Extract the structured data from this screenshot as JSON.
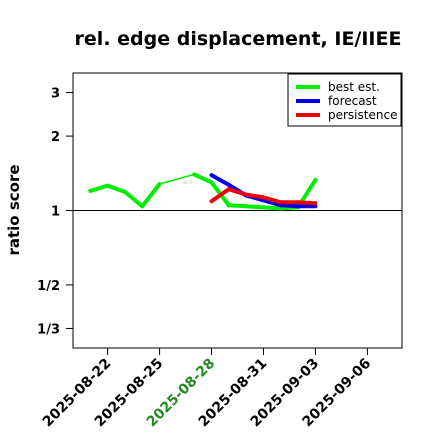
{
  "chart_data": {
    "type": "line",
    "title": "rel. edge displacement, IE/IIEE",
    "xlabel": "",
    "ylabel": "ratio score",
    "y_scale": "log",
    "ylim": [
      0.2778,
      3.6
    ],
    "y_ticks": [
      {
        "value": 0.3333,
        "label": "1/3"
      },
      {
        "value": 0.5,
        "label": "1/2"
      },
      {
        "value": 1,
        "label": "1"
      },
      {
        "value": 2,
        "label": "2"
      },
      {
        "value": 3,
        "label": "3"
      }
    ],
    "reference_line": 1,
    "xlim": [
      "2025-08-20",
      "2025-09-08"
    ],
    "x_ticks": [
      {
        "value": "2025-08-22",
        "label": "2025-08-22",
        "color": "#000000"
      },
      {
        "value": "2025-08-25",
        "label": "2025-08-25",
        "color": "#000000"
      },
      {
        "value": "2025-08-28",
        "label": "2025-08-28",
        "color": "#228b22"
      },
      {
        "value": "2025-08-31",
        "label": "2025-08-31",
        "color": "#000000"
      },
      {
        "value": "2025-09-03",
        "label": "2025-09-03",
        "color": "#000000"
      },
      {
        "value": "2025-09-06",
        "label": "2025-09-06",
        "color": "#000000"
      }
    ],
    "legend_position": "top-right",
    "series": [
      {
        "name": "best est.",
        "color": "#00ee00",
        "points": [
          [
            "2025-08-21",
            1.2
          ],
          [
            "2025-08-22",
            1.26
          ],
          [
            "2025-08-23",
            1.19
          ],
          [
            "2025-08-24",
            1.04
          ],
          [
            "2025-08-25",
            1.28
          ],
          [
            "2025-08-27",
            1.4
          ],
          [
            "2025-08-28",
            1.3
          ],
          [
            "2025-08-29",
            1.05
          ],
          [
            "2025-08-30",
            1.04
          ],
          [
            "2025-08-31",
            1.03
          ],
          [
            "2025-09-01",
            1.02
          ],
          [
            "2025-09-02",
            1.03
          ],
          [
            "2025-09-03",
            1.33
          ]
        ],
        "thin_segments": [
          [
            4,
            5
          ]
        ]
      },
      {
        "name": "forecast",
        "color": "#0000ee",
        "points": [
          [
            "2025-08-28",
            1.39
          ],
          [
            "2025-08-29",
            1.27
          ],
          [
            "2025-08-30",
            1.15
          ],
          [
            "2025-08-31",
            1.1
          ],
          [
            "2025-09-01",
            1.05
          ],
          [
            "2025-09-02",
            1.04
          ],
          [
            "2025-09-03",
            1.04
          ]
        ]
      },
      {
        "name": "persistence",
        "color": "#ee0000",
        "points": [
          [
            "2025-08-28",
            1.09
          ],
          [
            "2025-08-29",
            1.22
          ],
          [
            "2025-08-30",
            1.16
          ],
          [
            "2025-08-31",
            1.13
          ],
          [
            "2025-09-01",
            1.08
          ],
          [
            "2025-09-02",
            1.08
          ],
          [
            "2025-09-03",
            1.07
          ]
        ]
      }
    ]
  }
}
